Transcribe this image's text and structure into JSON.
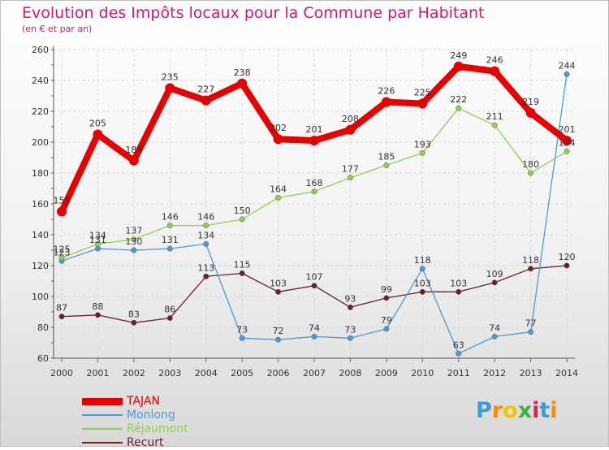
{
  "chart_data": {
    "type": "line",
    "title": "Evolution des Impôts locaux pour la Commune par Habitant",
    "subtitle": "(en € et par an)",
    "x": [
      "2000",
      "2001",
      "2002",
      "2003",
      "2004",
      "2005",
      "2006",
      "2007",
      "2008",
      "2009",
      "2010",
      "2011",
      "2012",
      "2013",
      "2014"
    ],
    "ylim": [
      60,
      260
    ],
    "yticks": [
      60,
      80,
      100,
      120,
      140,
      160,
      180,
      200,
      220,
      240,
      260
    ],
    "grid": true,
    "legend_position": "bottom-left",
    "series": [
      {
        "name": "TAJAN",
        "color": "#e60000",
        "values": [
          155,
          205,
          188,
          235,
          227,
          238,
          202,
          201,
          208,
          226,
          225,
          249,
          246,
          219,
          201
        ]
      },
      {
        "name": "Monlong",
        "color": "#4d9ad6",
        "values": [
          123,
          131,
          130,
          131,
          134,
          73,
          72,
          74,
          73,
          79,
          118,
          63,
          74,
          77,
          244
        ]
      },
      {
        "name": "Réjaumont",
        "color": "#8fd14f",
        "values": [
          125,
          134,
          137,
          146,
          146,
          150,
          164,
          168,
          177,
          185,
          193,
          222,
          211,
          180,
          194
        ]
      },
      {
        "name": "Recurt",
        "color": "#6b1f28",
        "values": [
          87,
          88,
          83,
          86,
          113,
          115,
          103,
          107,
          93,
          99,
          103,
          103,
          109,
          118,
          120
        ]
      }
    ]
  },
  "brand": {
    "name": "Proxiti",
    "letters": [
      "P",
      "r",
      "o",
      "x",
      "i",
      "t",
      "i"
    ],
    "colors": [
      "#3a9be0",
      "#ff8a00",
      "#f5c400",
      "#3fb13f",
      "#e81c5a",
      "#3a9be0",
      "#ff8a00"
    ]
  }
}
